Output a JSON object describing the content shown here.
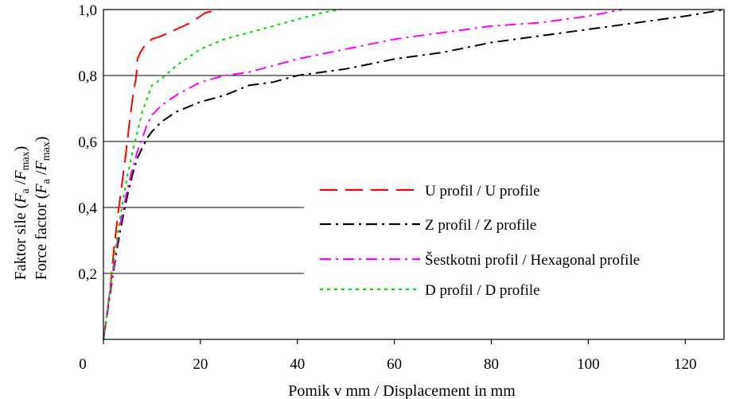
{
  "chart_data": {
    "type": "line",
    "xlabel": "Pomik v mm / Displacement in mm",
    "ylabel_line1": "Faktor sile (",
    "ylabel_line2": "Force factor (",
    "ylabel_sym_F": "F",
    "ylabel_sub_a": "a",
    "ylabel_sep": " /",
    "ylabel_sub_max": "max",
    "ylabel_close": ")",
    "xlim": [
      0,
      128
    ],
    "ylim": [
      0,
      1.0
    ],
    "x_ticks": [
      {
        "value": 0,
        "label": "0"
      },
      {
        "value": 20,
        "label": "20"
      },
      {
        "value": 40,
        "label": "40"
      },
      {
        "value": 60,
        "label": "60"
      },
      {
        "value": 80,
        "label": "80"
      },
      {
        "value": 100,
        "label": "100"
      },
      {
        "value": 120,
        "label": "120"
      }
    ],
    "y_ticks": [
      {
        "value": 0.2,
        "label": "0,2"
      },
      {
        "value": 0.4,
        "label": "0,4"
      },
      {
        "value": 0.6,
        "label": "0,6"
      },
      {
        "value": 0.8,
        "label": "0,8"
      },
      {
        "value": 1.0,
        "label": "1,0"
      }
    ],
    "grid": "horizontal",
    "legend_position": "center-right",
    "series": [
      {
        "name": "U profil / U profile",
        "color": "#ff0000",
        "dash": "dashed",
        "x": [
          0,
          0.8,
          1.5,
          2.2,
          3.0,
          3.8,
          4.6,
          5.3,
          6.0,
          6.8,
          7.0,
          7.6,
          8.5,
          10,
          12,
          15,
          18,
          21,
          24
        ],
        "y": [
          0,
          0.08,
          0.17,
          0.28,
          0.38,
          0.47,
          0.56,
          0.65,
          0.73,
          0.8,
          0.85,
          0.87,
          0.89,
          0.91,
          0.92,
          0.94,
          0.96,
          0.99,
          1.0
        ]
      },
      {
        "name": "Z profil / Z profile",
        "color": "#000000",
        "dash": "dashdot",
        "x": [
          0,
          1,
          2,
          3,
          4,
          5,
          6,
          7,
          8,
          9,
          10,
          12,
          15,
          20,
          25,
          30,
          35,
          40,
          50,
          60,
          70,
          80,
          90,
          100,
          110,
          120,
          128
        ],
        "y": [
          0,
          0.1,
          0.2,
          0.29,
          0.37,
          0.44,
          0.5,
          0.55,
          0.58,
          0.61,
          0.63,
          0.66,
          0.69,
          0.72,
          0.74,
          0.77,
          0.78,
          0.8,
          0.82,
          0.85,
          0.87,
          0.9,
          0.92,
          0.94,
          0.96,
          0.98,
          1.0
        ]
      },
      {
        "name": "Šestkotni profil / Hexagonal profile",
        "color": "#ff00ff",
        "dash": "dashdot",
        "x": [
          0,
          1,
          2,
          3,
          4,
          5,
          6,
          7,
          8,
          9,
          10,
          12,
          15,
          20,
          25,
          30,
          40,
          50,
          60,
          70,
          80,
          90,
          100,
          107
        ],
        "y": [
          0,
          0.11,
          0.21,
          0.31,
          0.39,
          0.46,
          0.52,
          0.57,
          0.61,
          0.65,
          0.68,
          0.71,
          0.74,
          0.78,
          0.8,
          0.81,
          0.85,
          0.88,
          0.91,
          0.93,
          0.95,
          0.96,
          0.98,
          1.0
        ]
      },
      {
        "name": "D profil / D profile",
        "color": "#00dd00",
        "dash": "dotted",
        "x": [
          0,
          1,
          2,
          3,
          4,
          5,
          6,
          7,
          8,
          9,
          10,
          12,
          15,
          20,
          25,
          30,
          35,
          40,
          45,
          49
        ],
        "y": [
          0,
          0.11,
          0.22,
          0.33,
          0.42,
          0.5,
          0.57,
          0.63,
          0.69,
          0.73,
          0.77,
          0.79,
          0.83,
          0.88,
          0.91,
          0.93,
          0.95,
          0.97,
          0.99,
          1.0
        ]
      }
    ]
  }
}
